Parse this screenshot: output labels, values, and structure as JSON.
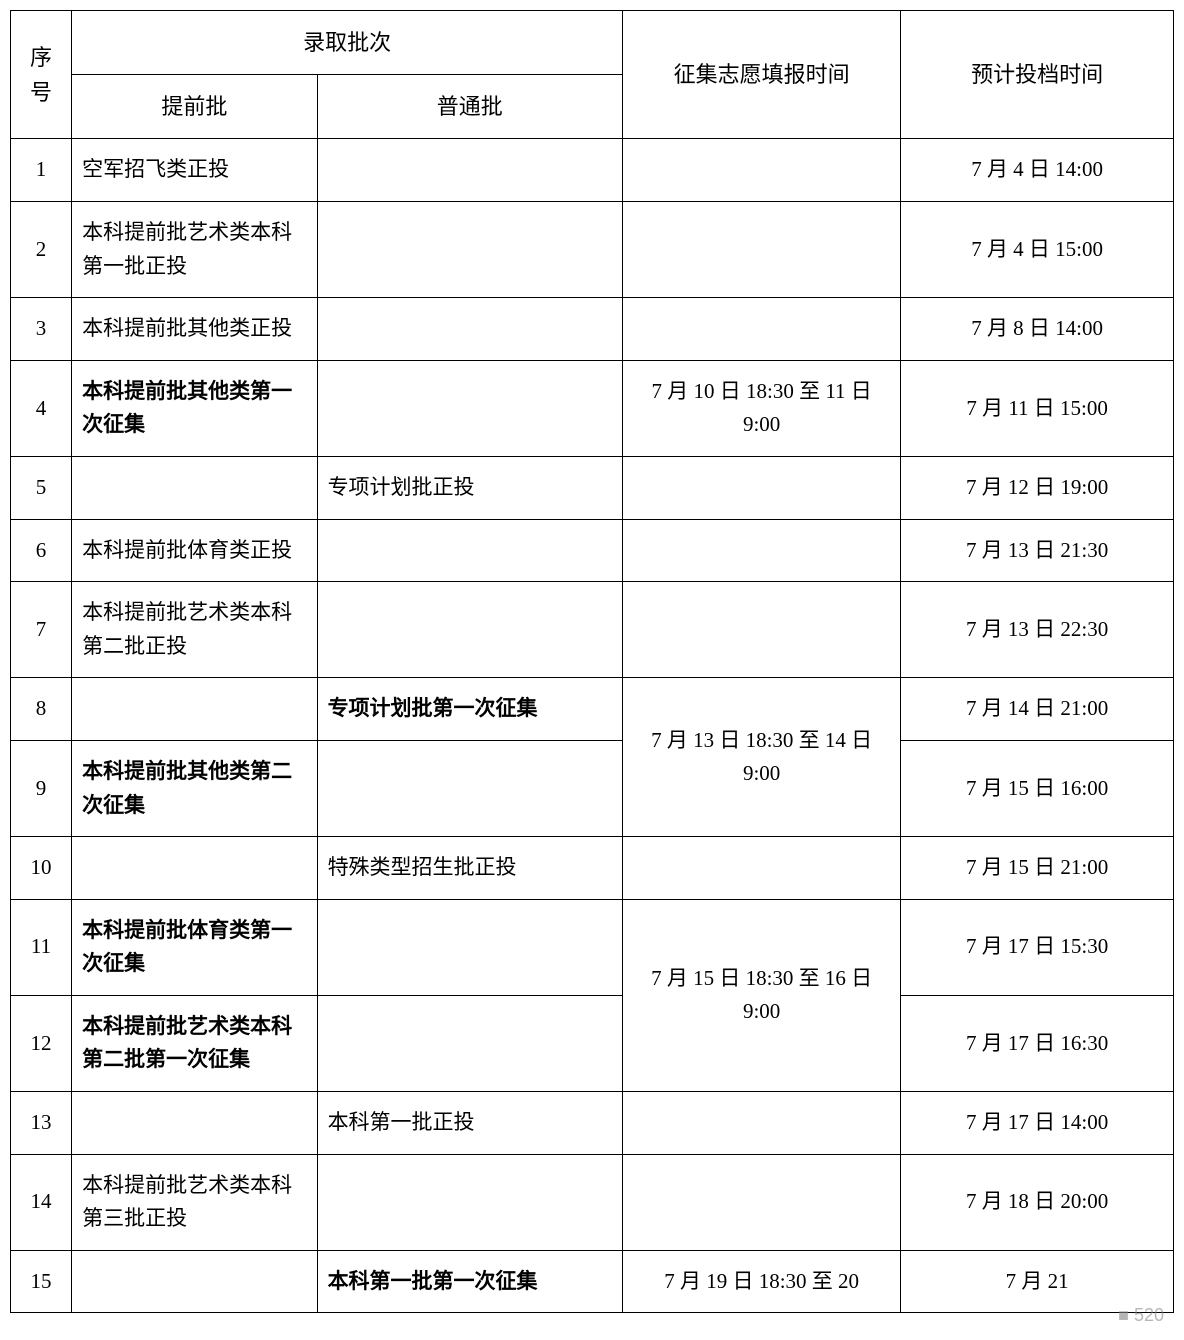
{
  "table": {
    "header": {
      "seq": "序号",
      "batch": "录取批次",
      "pre": "提前批",
      "general": "普通批",
      "collect_time": "征集志愿填报时间",
      "plan_time": "预计投档时间"
    },
    "col_widths": {
      "seq": 56,
      "pre": 225,
      "gen": 280,
      "time": 255,
      "plan": 250
    },
    "font_size": 21,
    "header_font_size": 22,
    "border_color": "#000000",
    "background_color": "#ffffff",
    "text_color": "#000000",
    "rows": [
      {
        "n": "1",
        "pre": "空军招飞类正投",
        "pre_bold": false,
        "gen": "",
        "gen_bold": false,
        "time": "",
        "plan": "7 月 4 日 14:00"
      },
      {
        "n": "2",
        "pre": "本科提前批艺术类本科第一批正投",
        "pre_bold": false,
        "gen": "",
        "gen_bold": false,
        "time": "",
        "plan": "7 月 4 日 15:00"
      },
      {
        "n": "3",
        "pre": "本科提前批其他类正投",
        "pre_bold": false,
        "gen": "",
        "gen_bold": false,
        "time": "",
        "plan": "7 月 8 日 14:00"
      },
      {
        "n": "4",
        "pre": "本科提前批其他类第一次征集",
        "pre_bold": true,
        "gen": "",
        "gen_bold": false,
        "time": "7 月 10 日 18:30 至 11 日 9:00",
        "plan": "7 月 11 日 15:00"
      },
      {
        "n": "5",
        "pre": "",
        "pre_bold": false,
        "gen": "专项计划批正投",
        "gen_bold": false,
        "time": "",
        "plan": "7 月 12 日 19:00"
      },
      {
        "n": "6",
        "pre": "本科提前批体育类正投",
        "pre_bold": false,
        "gen": "",
        "gen_bold": false,
        "time": "",
        "plan": "7 月 13 日 21:30"
      },
      {
        "n": "7",
        "pre": "本科提前批艺术类本科第二批正投",
        "pre_bold": false,
        "gen": "",
        "gen_bold": false,
        "time": "",
        "plan": "7 月 13 日 22:30"
      },
      {
        "n": "8",
        "pre": "",
        "pre_bold": false,
        "gen": "专项计划批第一次征集",
        "gen_bold": true,
        "time": "7 月 13 日 18:30 至 14 日 9:00",
        "time_rowspan": 2,
        "plan": "7 月 14 日 21:00"
      },
      {
        "n": "9",
        "pre": "本科提前批其他类第二次征集",
        "pre_bold": true,
        "gen": "",
        "gen_bold": false,
        "time_skip": true,
        "plan": "7 月 15 日 16:00"
      },
      {
        "n": "10",
        "pre": "",
        "pre_bold": false,
        "gen": "特殊类型招生批正投",
        "gen_bold": false,
        "time": "",
        "plan": "7 月 15 日 21:00"
      },
      {
        "n": "11",
        "pre": "本科提前批体育类第一次征集",
        "pre_bold": true,
        "gen": "",
        "gen_bold": false,
        "time": "7 月 15 日 18:30 至 16 日 9:00",
        "time_rowspan": 2,
        "plan": "7 月 17 日 15:30"
      },
      {
        "n": "12",
        "pre": "本科提前批艺术类本科第二批第一次征集",
        "pre_bold": true,
        "gen": "",
        "gen_bold": false,
        "time_skip": true,
        "plan": "7 月 17 日 16:30"
      },
      {
        "n": "13",
        "pre": "",
        "pre_bold": false,
        "gen": "本科第一批正投",
        "gen_bold": false,
        "time": "",
        "plan": "7 月 17 日 14:00"
      },
      {
        "n": "14",
        "pre": "本科提前批艺术类本科第三批正投",
        "pre_bold": false,
        "gen": "",
        "gen_bold": false,
        "time": "",
        "plan": "7 月 18 日 20:00"
      },
      {
        "n": "15",
        "pre": "",
        "pre_bold": false,
        "gen": "本科第一批第一次征集",
        "gen_bold": true,
        "time": "7 月 19 日 18:30 至 20",
        "plan": "7 月 21"
      }
    ],
    "watermark": "■  520"
  }
}
